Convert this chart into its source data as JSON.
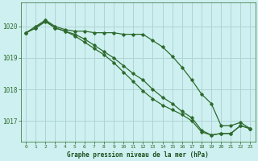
{
  "title": "Graphe pression niveau de la mer (hPa)",
  "background_color": "#cef0f0",
  "grid_color": "#b0d4d4",
  "line_color": "#2d6a2d",
  "x_ticks": [
    0,
    1,
    2,
    3,
    4,
    5,
    6,
    7,
    8,
    9,
    10,
    11,
    12,
    13,
    14,
    15,
    16,
    17,
    18,
    19,
    20,
    21,
    22,
    23
  ],
  "ylim": [
    1016.35,
    1020.75
  ],
  "yticks": [
    1017,
    1018,
    1019,
    1020
  ],
  "line1": [
    1019.8,
    1020.0,
    1020.2,
    1020.0,
    1019.9,
    1019.85,
    1019.85,
    1019.8,
    1019.8,
    1019.8,
    1019.75,
    1019.75,
    1019.75,
    1019.55,
    1019.35,
    1019.05,
    1018.7,
    1018.3,
    1017.85,
    1017.55,
    1016.85,
    1016.85,
    1016.95,
    1016.75
  ],
  "line2": [
    1019.8,
    1019.95,
    1020.2,
    1019.95,
    1019.85,
    1019.75,
    1019.6,
    1019.4,
    1019.2,
    1019.0,
    1018.75,
    1018.5,
    1018.3,
    1018.0,
    1017.75,
    1017.55,
    1017.3,
    1017.1,
    1016.7,
    1016.55,
    1016.6,
    1016.6,
    1016.85,
    1016.75
  ],
  "line3": [
    1019.8,
    1019.95,
    1020.15,
    1019.95,
    1019.85,
    1019.7,
    1019.5,
    1019.3,
    1019.1,
    1018.85,
    1018.55,
    1018.25,
    1017.95,
    1017.7,
    1017.5,
    1017.35,
    1017.2,
    1017.0,
    1016.65,
    1016.55,
    1016.6,
    1016.6,
    1016.85,
    1016.75
  ]
}
